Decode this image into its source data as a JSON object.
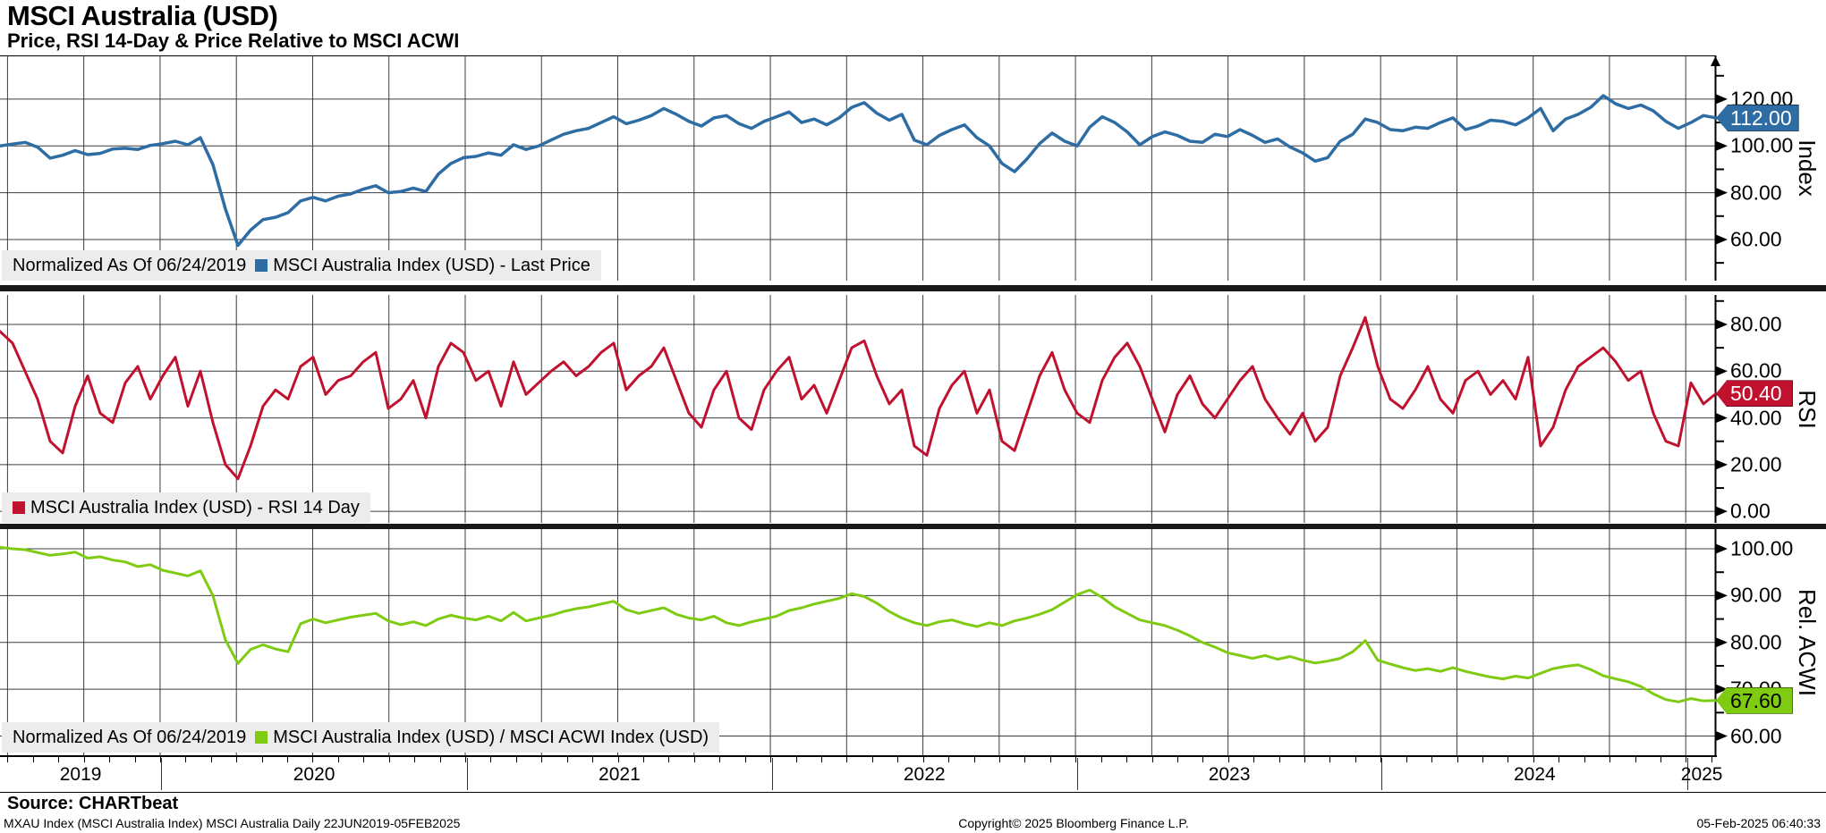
{
  "header": {
    "title": "MSCI Australia (USD)",
    "subtitle": "Price, RSI 14-Day & Price Relative to MSCI ACWI"
  },
  "footer": {
    "source": "Source: CHARTbeat",
    "footnote": "MXAU Index (MSCI Australia Index) MSCI Australia  Daily 22JUN2019-05FEB2025",
    "copyright": "Copyright© 2025 Bloomberg Finance L.P.",
    "timestamp": "05-Feb-2025 06:40:33"
  },
  "x_axis": {
    "range": "22JUN2019-05FEB2025",
    "years": [
      "2019",
      "2020",
      "2021",
      "2022",
      "2023",
      "2024",
      "2025"
    ]
  },
  "chart_data": [
    {
      "type": "line",
      "title": "MSCI Australia Index (USD) - Last Price",
      "axis_title": "Index",
      "color": "#2e6da4",
      "badge_text_color": "#ffffff",
      "last_label": "112.00",
      "last_value": 112.0,
      "ylim": [
        42.4,
        138.7
      ],
      "yticks": [
        120,
        100,
        80,
        60
      ],
      "legend": {
        "prefix": "Normalized As Of 06/24/2019",
        "label": "MSCI Australia Index (USD) - Last Price"
      },
      "values": [
        100.0,
        100.8,
        101.5,
        99.5,
        94.8,
        96.0,
        98.0,
        96.3,
        96.8,
        98.7,
        99.0,
        98.5,
        100.2,
        101.0,
        102.0,
        100.5,
        103.5,
        92.0,
        73.0,
        57.5,
        64.0,
        68.5,
        69.5,
        71.5,
        76.5,
        78.0,
        76.5,
        78.5,
        79.5,
        81.5,
        83.0,
        80.0,
        80.5,
        82.0,
        80.5,
        88.0,
        92.5,
        95.0,
        95.5,
        97.0,
        96.0,
        100.5,
        98.5,
        100.0,
        102.5,
        105.0,
        106.5,
        107.5,
        110.0,
        112.5,
        109.5,
        111.0,
        113.0,
        116.0,
        113.5,
        110.5,
        108.5,
        112.0,
        113.0,
        109.5,
        107.5,
        110.5,
        112.5,
        114.5,
        110.0,
        111.5,
        109.0,
        112.0,
        116.5,
        118.5,
        114.0,
        111.0,
        113.5,
        102.5,
        100.5,
        104.5,
        107.0,
        109.0,
        103.5,
        100.0,
        92.5,
        89.0,
        94.5,
        101.0,
        105.5,
        102.0,
        100.0,
        108.0,
        112.5,
        110.0,
        106.0,
        100.5,
        104.0,
        106.0,
        104.5,
        102.0,
        101.5,
        105.0,
        104.0,
        107.0,
        104.5,
        101.5,
        103.0,
        99.5,
        97.0,
        93.5,
        95.0,
        102.0,
        105.0,
        111.5,
        110.0,
        107.0,
        106.5,
        108.0,
        107.5,
        110.0,
        112.0,
        107.0,
        108.5,
        111.0,
        110.5,
        109.0,
        112.0,
        116.0,
        106.5,
        111.5,
        113.5,
        116.5,
        121.5,
        118.0,
        116.0,
        117.5,
        115.0,
        110.5,
        107.5,
        110.0,
        113.0,
        112.0
      ]
    },
    {
      "type": "line",
      "title": "MSCI Australia Index (USD) - RSI 14 Day",
      "axis_title": "RSI",
      "color": "#c0112f",
      "badge_text_color": "#ffffff",
      "last_label": "50.40",
      "last_value": 50.4,
      "ylim": [
        -4.9,
        92.6
      ],
      "yticks": [
        80,
        60,
        40,
        20,
        0
      ],
      "legend": {
        "prefix": null,
        "label": "MSCI Australia Index (USD) - RSI 14 Day"
      },
      "values": [
        77,
        72,
        60,
        48,
        30,
        25,
        45,
        58,
        42,
        38,
        55,
        62,
        48,
        58,
        66,
        45,
        60,
        38,
        20,
        14,
        28,
        45,
        52,
        48,
        62,
        66,
        50,
        56,
        58,
        64,
        68,
        44,
        48,
        56,
        40,
        62,
        72,
        68,
        56,
        60,
        45,
        64,
        50,
        55,
        60,
        64,
        58,
        62,
        68,
        72,
        52,
        58,
        62,
        70,
        56,
        42,
        36,
        52,
        60,
        40,
        35,
        52,
        60,
        66,
        48,
        54,
        42,
        56,
        70,
        73,
        58,
        46,
        52,
        28,
        24,
        44,
        54,
        60,
        42,
        52,
        30,
        26,
        42,
        58,
        68,
        52,
        42,
        38,
        56,
        66,
        72,
        62,
        48,
        34,
        50,
        58,
        46,
        40,
        48,
        56,
        62,
        48,
        40,
        33,
        42,
        30,
        36,
        58,
        70,
        83,
        62,
        48,
        44,
        52,
        62,
        48,
        42,
        56,
        60,
        50,
        56,
        48,
        66,
        28,
        36,
        52,
        62,
        66,
        70,
        64,
        56,
        60,
        42,
        30,
        28,
        55,
        46,
        50.4
      ]
    },
    {
      "type": "line",
      "title": "MSCI Australia Index (USD) / MSCI ACWI Index (USD)",
      "axis_title": "Rel. ACWI",
      "color": "#7ecb12",
      "badge_text_color": "#000000",
      "last_label": "67.60",
      "last_value": 67.6,
      "ylim": [
        55.9,
        104.2
      ],
      "yticks": [
        100,
        90,
        80,
        70,
        60
      ],
      "legend": {
        "prefix": "Normalized As Of 06/24/2019",
        "label": "MSCI Australia Index (USD) / MSCI ACWI Index (USD)"
      },
      "values": [
        100.3,
        100.0,
        99.8,
        99.2,
        98.6,
        98.9,
        99.3,
        98.0,
        98.3,
        97.6,
        97.2,
        96.2,
        96.6,
        95.4,
        94.8,
        94.2,
        95.3,
        90.0,
        80.5,
        75.5,
        78.5,
        79.5,
        78.6,
        78.0,
        84.0,
        85.0,
        84.2,
        84.8,
        85.4,
        85.8,
        86.2,
        84.6,
        83.8,
        84.4,
        83.6,
        85.0,
        85.8,
        85.2,
        84.8,
        85.6,
        84.6,
        86.4,
        84.6,
        85.2,
        85.8,
        86.6,
        87.2,
        87.6,
        88.2,
        88.8,
        87.0,
        86.2,
        86.8,
        87.4,
        86.0,
        85.2,
        84.8,
        85.6,
        84.2,
        83.6,
        84.4,
        85.0,
        85.6,
        86.8,
        87.4,
        88.2,
        88.8,
        89.4,
        90.4,
        89.8,
        88.4,
        86.6,
        85.2,
        84.2,
        83.6,
        84.4,
        84.8,
        84.0,
        83.4,
        84.2,
        83.6,
        84.6,
        85.2,
        86.0,
        87.0,
        88.6,
        90.2,
        91.2,
        89.6,
        87.6,
        86.2,
        84.8,
        84.2,
        83.6,
        82.6,
        81.4,
        80.0,
        79.0,
        77.8,
        77.2,
        76.6,
        77.2,
        76.4,
        77.0,
        76.2,
        75.6,
        76.0,
        76.6,
        78.0,
        80.4,
        76.2,
        75.4,
        74.6,
        74.0,
        74.4,
        73.8,
        74.6,
        73.8,
        73.2,
        72.6,
        72.2,
        72.8,
        72.4,
        73.4,
        74.4,
        74.9,
        75.2,
        74.2,
        72.9,
        72.2,
        71.6,
        70.6,
        69.0,
        67.8,
        67.3,
        68.0,
        67.5,
        67.6
      ]
    }
  ]
}
